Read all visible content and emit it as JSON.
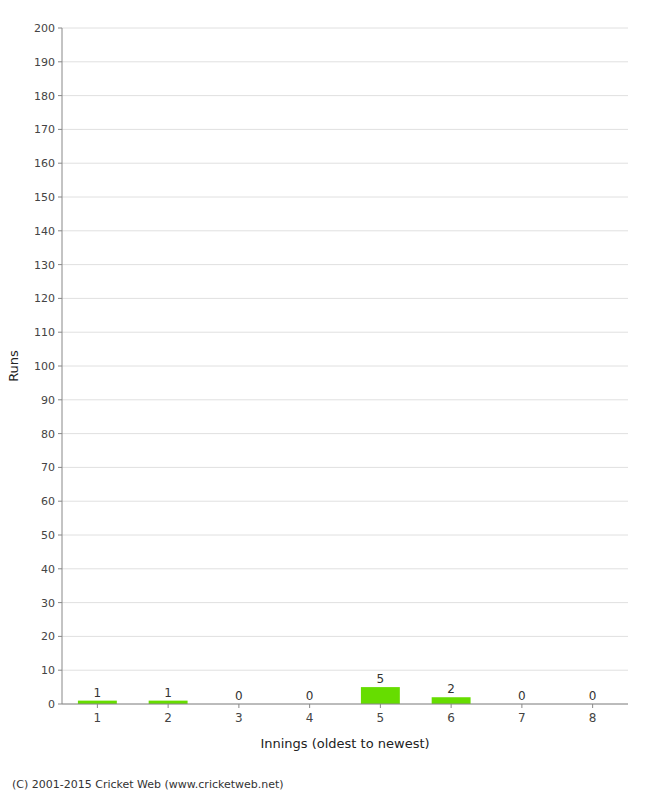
{
  "chart_data": {
    "type": "bar",
    "x": [
      1,
      2,
      3,
      4,
      5,
      6,
      7,
      8
    ],
    "values": [
      1,
      1,
      0,
      0,
      5,
      2,
      0,
      0
    ],
    "color": "#66dd00",
    "xlabel": "Innings (oldest to newest)",
    "ylabel": "Runs",
    "xlim": [
      0.5,
      8.5
    ],
    "xticks": [
      1,
      2,
      3,
      4,
      5,
      6,
      7,
      8
    ],
    "ylim": [
      0,
      200
    ],
    "yticks": [
      0,
      10,
      20,
      30,
      40,
      50,
      60,
      70,
      80,
      90,
      100,
      110,
      120,
      130,
      140,
      150,
      160,
      170,
      180,
      190,
      200
    ],
    "grid": true,
    "data_labels": true,
    "annotations": [
      "(C) 2001-2015 Cricket Web (www.cricketweb.net)"
    ]
  }
}
